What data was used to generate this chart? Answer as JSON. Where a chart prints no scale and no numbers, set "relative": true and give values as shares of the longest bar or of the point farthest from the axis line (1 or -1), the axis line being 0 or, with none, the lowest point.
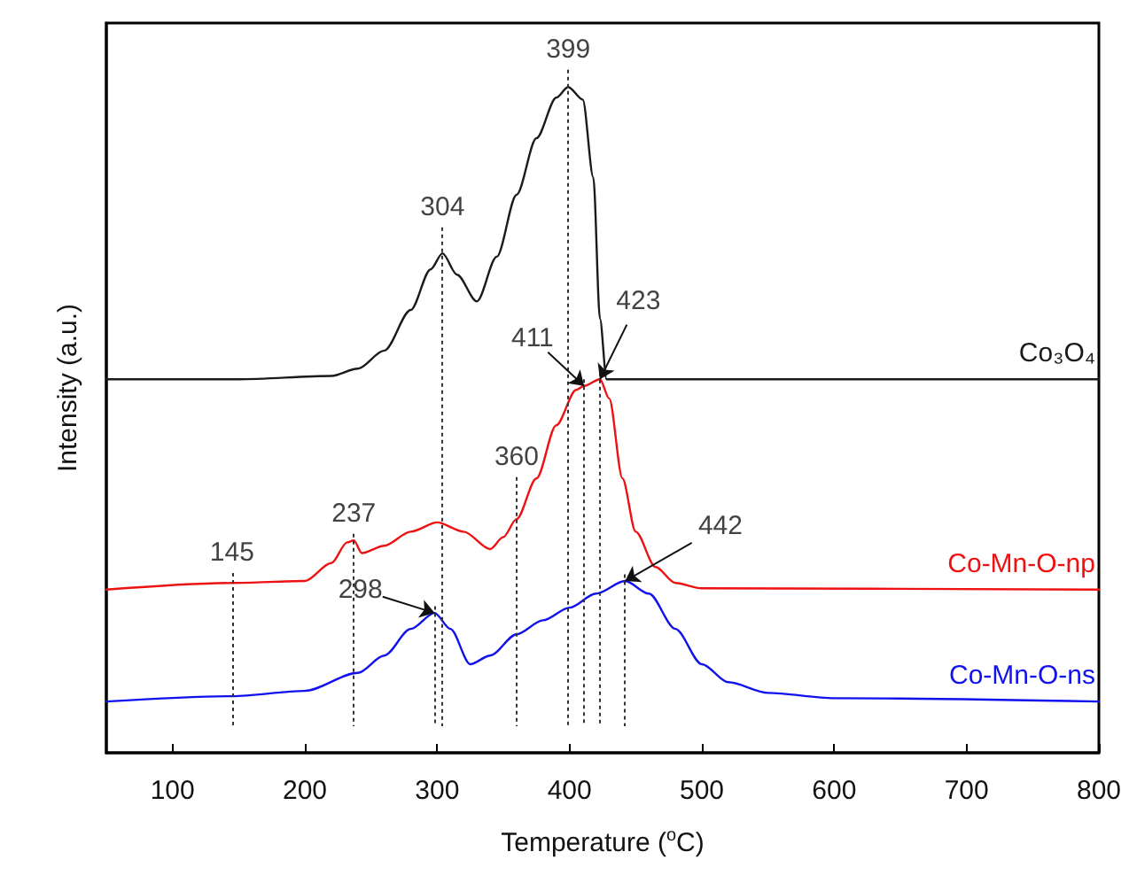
{
  "chart_data": {
    "type": "line",
    "xlabel": "Temperature ($^{o}$C)",
    "ylabel": "Intensity (a.u.)",
    "relative": true,
    "marker": "none",
    "xlim": [
      50,
      800
    ],
    "xticks": [
      100,
      200,
      300,
      400,
      500,
      600,
      700,
      800
    ],
    "series": [
      {
        "name": "Co₃O₄",
        "color": "#1a1a1a",
        "x": [
          50,
          150,
          220,
          240,
          260,
          280,
          295,
          304,
          315,
          330,
          345,
          360,
          375,
          390,
          399,
          410,
          418,
          423,
          428,
          500,
          800
        ],
        "values": [
          0.561,
          0.561,
          0.566,
          0.577,
          0.604,
          0.665,
          0.726,
          0.75,
          0.718,
          0.678,
          0.745,
          0.838,
          0.923,
          0.984,
          1,
          0.981,
          0.864,
          0.652,
          0.561,
          0.561,
          0.561
        ]
      },
      {
        "name": "Co-Mn-O-np",
        "color": "#ee1111",
        "x": [
          50,
          145,
          200,
          220,
          232,
          237,
          243,
          260,
          280,
          300,
          320,
          340,
          350,
          360,
          375,
          390,
          405,
          411,
          423,
          430,
          440,
          450,
          465,
          480,
          500,
          800
        ],
        "values": [
          0.245,
          0.255,
          0.258,
          0.285,
          0.316,
          0.319,
          0.3,
          0.311,
          0.332,
          0.346,
          0.332,
          0.306,
          0.324,
          0.351,
          0.412,
          0.492,
          0.545,
          0.551,
          0.561,
          0.532,
          0.412,
          0.332,
          0.279,
          0.255,
          0.247,
          0.245
        ]
      },
      {
        "name": "Co-Mn-O-ns",
        "color": "#1111ee",
        "x": [
          50,
          145,
          200,
          240,
          260,
          280,
          298,
          310,
          325,
          340,
          360,
          380,
          400,
          420,
          442,
          460,
          480,
          500,
          520,
          550,
          600,
          800
        ],
        "values": [
          0.077,
          0.085,
          0.093,
          0.12,
          0.146,
          0.186,
          0.21,
          0.186,
          0.133,
          0.146,
          0.178,
          0.199,
          0.218,
          0.239,
          0.258,
          0.239,
          0.186,
          0.133,
          0.106,
          0.09,
          0.082,
          0.077
        ]
      }
    ],
    "ref_lines": [
      {
        "axis": "x",
        "value": 399,
        "color": "#333333",
        "line_style": "dotted"
      },
      {
        "axis": "x",
        "value": 304,
        "color": "#333333",
        "line_style": "dotted"
      },
      {
        "axis": "x",
        "value": 411,
        "color": "#333333",
        "line_style": "dotted"
      },
      {
        "axis": "x",
        "value": 423,
        "color": "#333333",
        "line_style": "dotted"
      },
      {
        "axis": "x",
        "value": 360,
        "color": "#333333",
        "line_style": "dotted"
      },
      {
        "axis": "x",
        "value": 237,
        "color": "#333333",
        "line_style": "dotted"
      },
      {
        "axis": "x",
        "value": 145,
        "color": "#333333",
        "line_style": "dotted"
      },
      {
        "axis": "x",
        "value": 298,
        "color": "#333333",
        "line_style": "dotted"
      },
      {
        "axis": "x",
        "value": 442,
        "color": "#333333",
        "line_style": "dotted"
      }
    ],
    "annotations": [
      {
        "text": "399",
        "x": 399,
        "y": 1
      },
      {
        "text": "304",
        "x": 304,
        "y": 0.75
      },
      {
        "text": "411",
        "x": 411,
        "y": 0.551
      },
      {
        "text": "423",
        "x": 423,
        "y": 0.561
      },
      {
        "text": "360",
        "x": 360,
        "y": 0.351
      },
      {
        "text": "237",
        "x": 237,
        "y": 0.319
      },
      {
        "text": "145",
        "x": 145,
        "y": 0.255
      },
      {
        "text": "298",
        "x": 298,
        "y": 0.21
      },
      {
        "text": "442",
        "x": 442,
        "y": 0.258
      }
    ]
  }
}
